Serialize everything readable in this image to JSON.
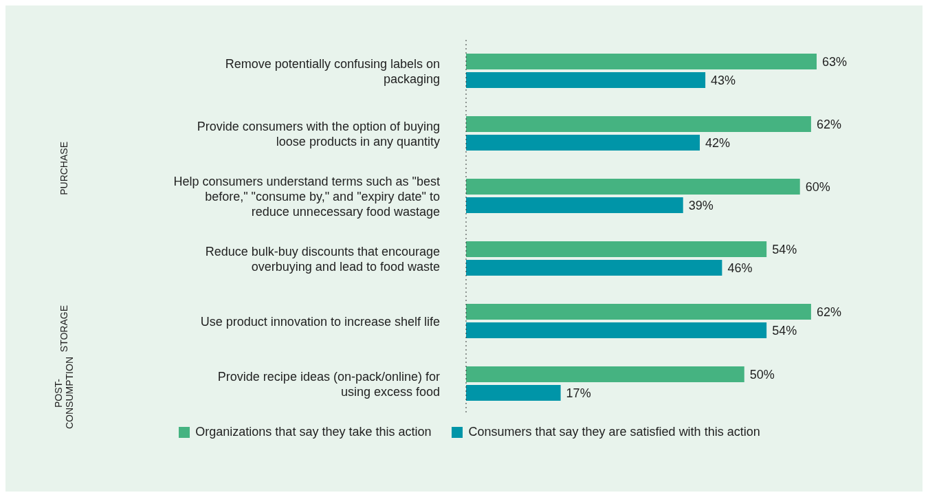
{
  "chart_data": {
    "type": "bar",
    "orientation": "horizontal",
    "categories": [
      "Remove potentially confusing labels on packaging",
      "Provide consumers with the option of buying loose products in any quantity",
      "Help consumers understand terms such as \"best before,\" \"consume by,\" and \"expiry date\" to reduce unnecessary food wastage",
      "Reduce bulk-buy discounts that encourage overbuying and lead to food waste",
      "Use product innovation to increase shelf life",
      "Provide recipe ideas (on-pack/online) for using excess food"
    ],
    "series": [
      {
        "name": "Organizations that say they take this action",
        "color": "#45b381",
        "values": [
          63,
          62,
          60,
          54,
          62,
          50
        ],
        "value_labels": [
          "63%",
          "62%",
          "60%",
          "54%",
          "62%",
          "50%"
        ]
      },
      {
        "name": "Consumers that say they are satisfied with this action",
        "color": "#0095a8",
        "values": [
          43,
          42,
          39,
          46,
          54,
          17
        ],
        "value_labels": [
          "43%",
          "42%",
          "39%",
          "46%",
          "54%",
          "17%"
        ]
      }
    ],
    "annotations": [
      "PURCHASE",
      "STORAGE",
      "POST-CONSUMPTION"
    ],
    "legend": "bottom"
  }
}
